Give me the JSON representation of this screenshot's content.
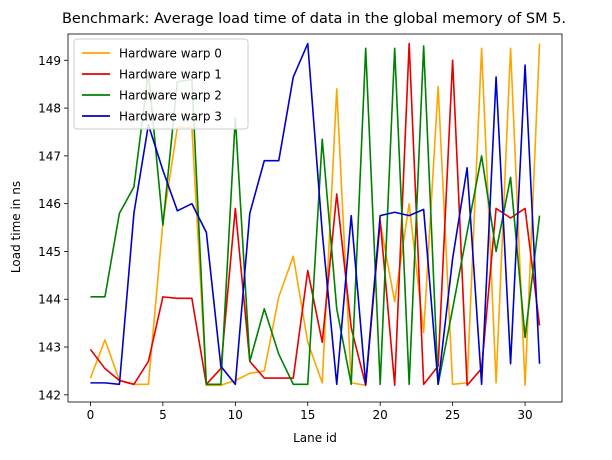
{
  "chart_data": {
    "type": "line",
    "title": "Benchmark: Average load time of data in the global memory of SM 5.",
    "xlabel": "Lane id",
    "ylabel": "Load time in ns",
    "xlim": [
      -1.55,
      32.55
    ],
    "ylim": [
      141.85,
      149.55
    ],
    "xticks": [
      0,
      5,
      10,
      15,
      20,
      25,
      30
    ],
    "yticks": [
      142,
      143,
      144,
      145,
      146,
      147,
      148,
      149
    ],
    "grid": false,
    "legend_position": "upper-left",
    "x": [
      0,
      1,
      2,
      3,
      4,
      5,
      6,
      7,
      8,
      9,
      10,
      11,
      12,
      13,
      14,
      15,
      16,
      17,
      18,
      19,
      20,
      21,
      22,
      23,
      24,
      25,
      26,
      27,
      28,
      29,
      30,
      31
    ],
    "series": [
      {
        "name": "Hardware warp 0",
        "color": "#FFA500",
        "values": [
          142.35,
          143.15,
          142.3,
          142.22,
          142.22,
          145.6,
          147.6,
          147.6,
          142.2,
          142.2,
          142.3,
          142.45,
          142.5,
          144.05,
          144.9,
          143.1,
          142.25,
          148.4,
          142.25,
          142.2,
          145.6,
          143.95,
          146.0,
          143.3,
          148.45,
          142.22,
          142.25,
          149.25,
          142.25,
          149.25,
          142.2,
          149.35
        ]
      },
      {
        "name": "Hardware warp 1",
        "color": "#E60000",
        "values": [
          142.95,
          142.55,
          142.3,
          142.22,
          142.7,
          144.05,
          144.02,
          144.02,
          142.22,
          142.55,
          145.9,
          142.7,
          142.35,
          142.35,
          142.35,
          144.6,
          143.1,
          146.2,
          143.4,
          142.2,
          145.65,
          142.2,
          149.35,
          142.22,
          142.6,
          149.0,
          142.2,
          142.55,
          145.9,
          145.7,
          145.9,
          143.45
        ]
      },
      {
        "name": "Hardware warp 2",
        "color": "#008000",
        "values": [
          144.05,
          144.05,
          145.8,
          146.35,
          148.75,
          145.55,
          148.55,
          148.6,
          142.22,
          142.22,
          147.8,
          142.7,
          143.8,
          142.85,
          142.22,
          142.22,
          147.35,
          143.8,
          142.22,
          149.25,
          142.22,
          149.25,
          142.22,
          149.3,
          142.22,
          143.8,
          145.4,
          147.0,
          145.0,
          146.55,
          143.2,
          145.75
        ]
      },
      {
        "name": "Hardware warp 3",
        "color": "#0000CC",
        "values": [
          142.25,
          142.25,
          142.22,
          145.8,
          147.65,
          146.7,
          145.85,
          146.0,
          145.4,
          142.6,
          142.22,
          145.8,
          146.9,
          146.9,
          148.65,
          149.35,
          145.4,
          142.22,
          145.75,
          142.22,
          145.75,
          145.82,
          145.75,
          145.88,
          142.22,
          144.85,
          146.75,
          142.22,
          148.65,
          142.65,
          148.9,
          142.65
        ]
      }
    ]
  }
}
